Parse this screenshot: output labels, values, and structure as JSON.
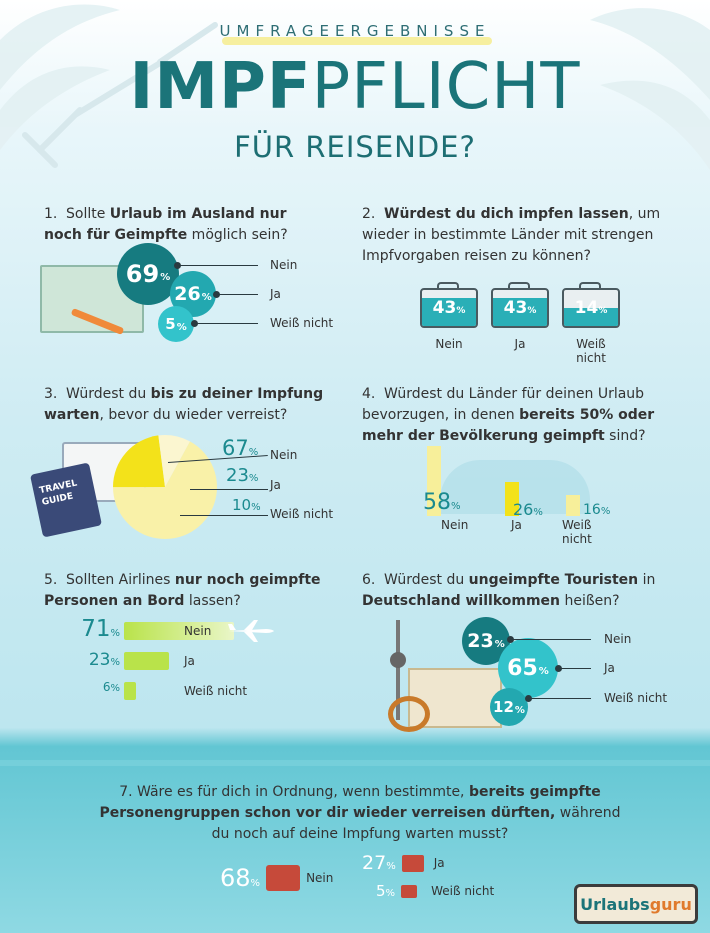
{
  "header": {
    "kicker": "UMFRAGEERGEBNISSE",
    "title_bold": "IMPF",
    "title_light": "PFLICHT",
    "subtitle": "FÜR REISENDE?"
  },
  "colors": {
    "teal_dark": "#167b80",
    "teal_mid": "#23a8b0",
    "teal_light": "#33c3cb",
    "yellow": "#f7ef9a",
    "yellow_strong": "#f3e21a",
    "lime": "#b9e34a"
  },
  "questions": {
    "q1": {
      "num": "1.",
      "text_a": "Sollte ",
      "text_b": "Urlaub im Ausland nur noch für Geimpfte",
      "text_c": " möglich sein?",
      "items": [
        {
          "label": "Nein",
          "value": "69",
          "unit": "%"
        },
        {
          "label": "Ja",
          "value": "26",
          "unit": "%"
        },
        {
          "label": "Weiß nicht",
          "value": "5",
          "unit": "%"
        }
      ]
    },
    "q2": {
      "num": "2.",
      "text_b": "Würdest du dich impfen lassen",
      "text_c": ", um wieder in bestimmte Länder mit strengen Impfvorgaben reisen zu können?",
      "items": [
        {
          "label": "Nein",
          "value": "43",
          "unit": "%"
        },
        {
          "label": "Ja",
          "value": "43",
          "unit": "%"
        },
        {
          "label": "Weiß nicht",
          "value": "14",
          "unit": "%"
        }
      ]
    },
    "q3": {
      "num": "3.",
      "text_a": "Würdest du ",
      "text_b": "bis zu deiner Impfung warten",
      "text_c": ", bevor du wieder verreist?",
      "book_line1": "TRAVEL",
      "book_line2": "GUIDE",
      "items": [
        {
          "label": "Nein",
          "value": "67",
          "unit": "%"
        },
        {
          "label": "Ja",
          "value": "23",
          "unit": "%"
        },
        {
          "label": "Weiß nicht",
          "value": "10",
          "unit": "%"
        }
      ]
    },
    "q4": {
      "num": "4.",
      "text_a": "Würdest du Länder für deinen Urlaub bevorzugen, in denen ",
      "text_b": "bereits 50% oder mehr der Bevölkerung geimpft",
      "text_c": " sind?",
      "items": [
        {
          "label": "Nein",
          "value": "58",
          "unit": "%"
        },
        {
          "label": "Ja",
          "value": "26",
          "unit": "%"
        },
        {
          "label": "Weiß nicht",
          "value": "16",
          "unit": "%"
        }
      ]
    },
    "q5": {
      "num": "5.",
      "text_a": "Sollten Airlines ",
      "text_b": "nur noch geimpfte Personen an Bord",
      "text_c": " lassen?",
      "items": [
        {
          "label": "Nein",
          "value": "71",
          "unit": "%"
        },
        {
          "label": "Ja",
          "value": "23",
          "unit": "%"
        },
        {
          "label": "Weiß nicht",
          "value": "6",
          "unit": "%"
        }
      ]
    },
    "q6": {
      "num": "6.",
      "text_a": "Würdest du ",
      "text_b": "ungeimpfte Touristen",
      "text_c": " in ",
      "text_d": "Deutschland willkommen",
      "text_e": " heißen?",
      "items": [
        {
          "label": "Nein",
          "value": "23",
          "unit": "%"
        },
        {
          "label": "Ja",
          "value": "65",
          "unit": "%"
        },
        {
          "label": "Weiß nicht",
          "value": "12",
          "unit": "%"
        }
      ]
    },
    "q7": {
      "num": "7.",
      "text_a": "Wäre es für dich in Ordnung, wenn bestimmte, ",
      "text_b": "bereits geimpfte Personengruppen schon vor dir wieder verreisen dürften,",
      "text_c": " während du noch auf deine Impfung warten musst?",
      "items": [
        {
          "label": "Nein",
          "value": "68",
          "unit": "%"
        },
        {
          "label": "Ja",
          "value": "27",
          "unit": "%"
        },
        {
          "label": "Weiß nicht",
          "value": "5",
          "unit": "%"
        }
      ]
    }
  },
  "logo": {
    "text_a": "Urlaubs",
    "text_b": "guru"
  },
  "chart_data": [
    {
      "type": "bar",
      "title": "Sollte Urlaub im Ausland nur noch für Geimpfte möglich sein?",
      "categories": [
        "Nein",
        "Ja",
        "Weiß nicht"
      ],
      "values": [
        69,
        26,
        5
      ],
      "unit": "%"
    },
    {
      "type": "bar",
      "title": "Würdest du dich impfen lassen, um wieder in bestimmte Länder mit strengen Impfvorgaben reisen zu können?",
      "categories": [
        "Nein",
        "Ja",
        "Weiß nicht"
      ],
      "values": [
        43,
        43,
        14
      ],
      "unit": "%"
    },
    {
      "type": "pie",
      "title": "Würdest du bis zu deiner Impfung warten, bevor du wieder verreist?",
      "categories": [
        "Nein",
        "Ja",
        "Weiß nicht"
      ],
      "values": [
        67,
        23,
        10
      ],
      "unit": "%"
    },
    {
      "type": "bar",
      "title": "Würdest du Länder für deinen Urlaub bevorzugen, in denen bereits 50% oder mehr der Bevölkerung geimpft sind?",
      "categories": [
        "Nein",
        "Ja",
        "Weiß nicht"
      ],
      "values": [
        58,
        26,
        16
      ],
      "unit": "%"
    },
    {
      "type": "bar",
      "title": "Sollten Airlines nur noch geimpfte Personen an Bord lassen?",
      "categories": [
        "Nein",
        "Ja",
        "Weiß nicht"
      ],
      "values": [
        71,
        23,
        6
      ],
      "unit": "%"
    },
    {
      "type": "bar",
      "title": "Würdest du ungeimpfte Touristen in Deutschland willkommen heißen?",
      "categories": [
        "Nein",
        "Ja",
        "Weiß nicht"
      ],
      "values": [
        23,
        65,
        12
      ],
      "unit": "%"
    },
    {
      "type": "bar",
      "title": "Wäre es für dich in Ordnung, wenn bestimmte, bereits geimpfte Personengruppen schon vor dir wieder verreisen dürften, während du noch auf deine Impfung warten musst?",
      "categories": [
        "Nein",
        "Ja",
        "Weiß nicht"
      ],
      "values": [
        68,
        27,
        5
      ],
      "unit": "%"
    }
  ]
}
